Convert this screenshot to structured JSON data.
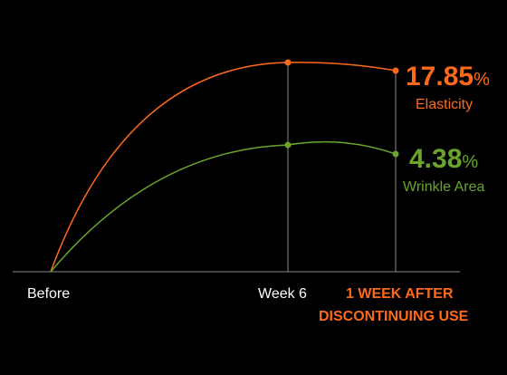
{
  "chart_data": {
    "type": "line",
    "categories": [
      "Before",
      "Week 6",
      "1 WEEK AFTER DISCONTINUING USE"
    ],
    "category_label_lines": [
      [
        "Before"
      ],
      [
        "Week 6"
      ],
      [
        "1 WEEK AFTER",
        "DISCONTINUING USE"
      ]
    ],
    "series": [
      {
        "name": "Elasticity",
        "values": [
          0,
          18.3,
          17.85
        ],
        "value_label": "17.85",
        "unit": "%",
        "color": "#ff6a1a"
      },
      {
        "name": "Wrinkle Area",
        "values": [
          0,
          4.65,
          4.38
        ],
        "value_label": "4.38",
        "unit": "%",
        "color": "#6aa52a"
      }
    ],
    "grid": false,
    "legend": "inline-right",
    "axis_color": "#8a8a8a",
    "background": "#000000",
    "accent_tick_color": "#ff6a1a"
  }
}
